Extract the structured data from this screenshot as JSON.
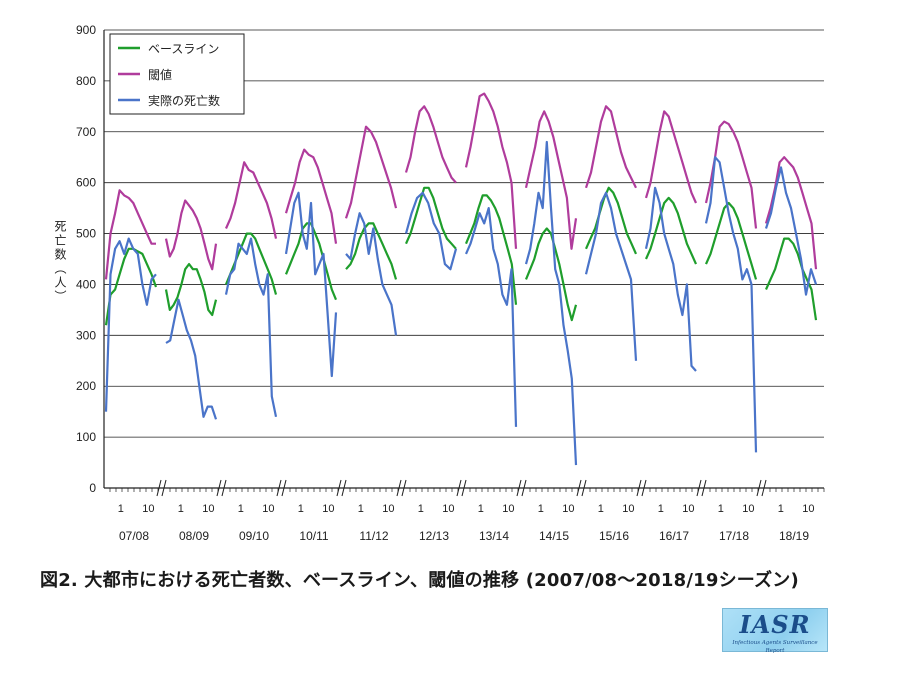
{
  "caption": "図2. 大都市における死亡者数、ベースライン、閾値の推移 (2007/08〜2018/19シーズン)",
  "logo": {
    "main": "IASR",
    "sub": "Infectious Agents Surveillance Report"
  },
  "chart_data": {
    "type": "line",
    "title": "",
    "xlabel": "",
    "ylabel": "死亡数（人）",
    "ylim": [
      0,
      900
    ],
    "yticks": [
      0,
      100,
      200,
      300,
      400,
      500,
      600,
      700,
      800,
      900
    ],
    "grid": true,
    "legend_position": "top-left",
    "seasons": [
      "07/08",
      "08/09",
      "09/10",
      "10/11",
      "11/12",
      "12/13",
      "13/14",
      "14/15",
      "15/16",
      "16/17",
      "17/18",
      "18/19"
    ],
    "week_tick_labels": [
      "1",
      "10"
    ],
    "series": [
      {
        "name": "ベースライン",
        "color": "#1f9e2c",
        "values": [
          [
            320,
            380,
            390,
            420,
            450,
            470,
            470,
            465,
            460,
            440,
            420,
            395
          ],
          [
            390,
            350,
            360,
            375,
            400,
            430,
            440,
            430,
            430,
            410,
            385,
            350,
            340,
            370
          ],
          [
            400,
            420,
            440,
            460,
            480,
            500,
            500,
            490,
            470,
            450,
            430,
            410,
            380
          ],
          [
            420,
            440,
            460,
            480,
            510,
            520,
            520,
            500,
            480,
            450,
            420,
            390,
            370
          ],
          [
            430,
            440,
            460,
            490,
            510,
            520,
            520,
            500,
            480,
            460,
            440,
            410
          ],
          [
            480,
            500,
            530,
            560,
            590,
            590,
            570,
            540,
            510,
            490,
            480,
            470
          ],
          [
            480,
            500,
            520,
            550,
            575,
            575,
            565,
            550,
            530,
            500,
            470,
            440,
            360
          ],
          [
            410,
            430,
            450,
            480,
            500,
            510,
            500,
            470,
            440,
            400,
            360,
            330,
            360
          ],
          [
            470,
            490,
            510,
            540,
            570,
            590,
            580,
            560,
            530,
            500,
            480,
            460
          ],
          [
            450,
            470,
            500,
            530,
            560,
            570,
            560,
            540,
            510,
            480,
            460,
            440
          ],
          [
            440,
            460,
            490,
            520,
            550,
            560,
            550,
            530,
            500,
            470,
            440,
            410
          ],
          [
            390,
            410,
            430,
            460,
            490,
            490,
            480,
            460,
            430,
            410,
            390,
            330
          ]
        ]
      },
      {
        "name": "閾値",
        "color": "#b03c9c",
        "values": [
          [
            410,
            500,
            540,
            585,
            575,
            570,
            560,
            540,
            520,
            500,
            480,
            480
          ],
          [
            490,
            455,
            470,
            500,
            540,
            565,
            555,
            545,
            530,
            510,
            480,
            450,
            430,
            480
          ],
          [
            510,
            530,
            560,
            600,
            640,
            625,
            620,
            600,
            580,
            560,
            530,
            490
          ],
          [
            540,
            570,
            600,
            640,
            665,
            655,
            650,
            630,
            600,
            570,
            540,
            480
          ],
          [
            530,
            560,
            610,
            660,
            710,
            700,
            680,
            650,
            620,
            590,
            550
          ],
          [
            620,
            650,
            700,
            740,
            750,
            735,
            710,
            680,
            650,
            630,
            610,
            600
          ],
          [
            630,
            670,
            720,
            770,
            775,
            760,
            740,
            710,
            670,
            640,
            600,
            470
          ],
          [
            590,
            630,
            670,
            720,
            740,
            720,
            690,
            650,
            610,
            570,
            470,
            530
          ],
          [
            590,
            620,
            670,
            720,
            750,
            740,
            700,
            660,
            630,
            610,
            590
          ],
          [
            570,
            600,
            650,
            700,
            740,
            730,
            700,
            670,
            640,
            610,
            580,
            560
          ],
          [
            560,
            600,
            650,
            710,
            720,
            715,
            700,
            680,
            650,
            620,
            590,
            510
          ],
          [
            520,
            550,
            590,
            640,
            650,
            640,
            630,
            610,
            580,
            550,
            520,
            430
          ]
        ]
      },
      {
        "name": "実際の死亡数",
        "color": "#4a74c9",
        "values": [
          [
            150,
            420,
            470,
            485,
            460,
            490,
            470,
            460,
            400,
            360,
            410,
            420
          ],
          [
            285,
            290,
            330,
            370,
            340,
            310,
            290,
            260,
            200,
            140,
            160,
            160,
            135
          ],
          [
            380,
            420,
            430,
            480,
            470,
            460,
            490,
            440,
            400,
            380,
            420,
            180,
            140
          ],
          [
            460,
            510,
            560,
            580,
            500,
            470,
            560,
            420,
            440,
            460,
            340,
            220,
            345
          ],
          [
            460,
            450,
            500,
            540,
            520,
            460,
            510,
            450,
            400,
            380,
            360,
            300
          ],
          [
            500,
            540,
            570,
            580,
            560,
            520,
            500,
            440,
            430,
            470
          ],
          [
            460,
            480,
            510,
            540,
            520,
            550,
            470,
            440,
            380,
            360,
            430,
            120
          ],
          [
            440,
            470,
            520,
            580,
            550,
            680,
            550,
            430,
            400,
            320,
            270,
            215,
            45
          ],
          [
            420,
            460,
            500,
            560,
            580,
            550,
            500,
            470,
            440,
            410,
            250
          ],
          [
            470,
            510,
            590,
            560,
            500,
            470,
            440,
            380,
            340,
            400,
            240,
            230
          ],
          [
            520,
            560,
            650,
            640,
            590,
            540,
            500,
            470,
            410,
            430,
            400,
            70
          ],
          [
            510,
            540,
            590,
            630,
            580,
            550,
            500,
            450,
            380,
            430,
            400
          ]
        ]
      }
    ]
  }
}
